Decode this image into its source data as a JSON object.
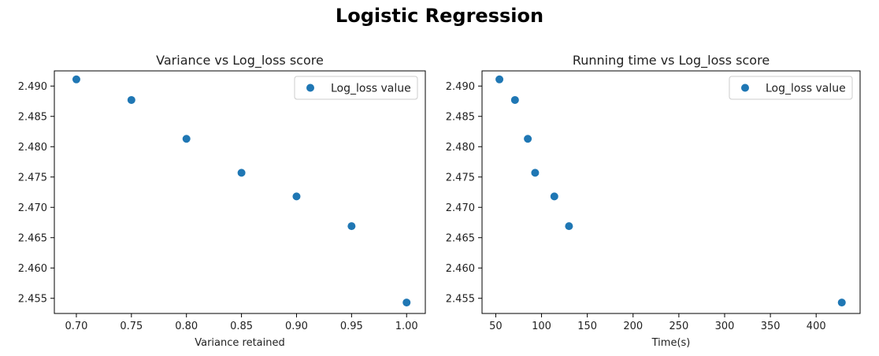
{
  "suptitle": "Logistic Regression",
  "chart_data": [
    {
      "type": "scatter",
      "title": "Variance vs Log_loss score",
      "xlabel": "Variance retained",
      "ylabel": "",
      "xlim": [
        0.68,
        1.017
      ],
      "ylim": [
        2.4525,
        2.4925
      ],
      "xticks": [
        0.7,
        0.75,
        0.8,
        0.85,
        0.9,
        0.95,
        1.0
      ],
      "xtick_labels": [
        "0.70",
        "0.75",
        "0.80",
        "0.85",
        "0.90",
        "0.95",
        "1.00"
      ],
      "yticks": [
        2.455,
        2.46,
        2.465,
        2.47,
        2.475,
        2.48,
        2.485,
        2.49
      ],
      "ytick_labels": [
        "2.455",
        "2.460",
        "2.465",
        "2.470",
        "2.475",
        "2.480",
        "2.485",
        "2.490"
      ],
      "grid": false,
      "legend": "top-right",
      "series": [
        {
          "name": "Log_loss value",
          "color": "#1f77b4",
          "x": [
            0.7,
            0.75,
            0.8,
            0.85,
            0.9,
            0.95,
            1.0
          ],
          "y": [
            2.4911,
            2.4877,
            2.4813,
            2.4757,
            2.4718,
            2.4669,
            2.4543
          ]
        }
      ]
    },
    {
      "type": "scatter",
      "title": "Running time vs Log_loss score",
      "xlabel": "Time(s)",
      "ylabel": "",
      "xlim": [
        35,
        448
      ],
      "ylim": [
        2.4525,
        2.4925
      ],
      "xticks": [
        50,
        100,
        150,
        200,
        250,
        300,
        350,
        400
      ],
      "xtick_labels": [
        "50",
        "100",
        "150",
        "200",
        "250",
        "300",
        "350",
        "400"
      ],
      "yticks": [
        2.455,
        2.46,
        2.465,
        2.47,
        2.475,
        2.48,
        2.485,
        2.49
      ],
      "ytick_labels": [
        "2.455",
        "2.460",
        "2.465",
        "2.470",
        "2.475",
        "2.480",
        "2.485",
        "2.490"
      ],
      "grid": false,
      "legend": "top-right",
      "series": [
        {
          "name": "Log_loss value",
          "color": "#1f77b4",
          "x": [
            54,
            71,
            85,
            93,
            114,
            130,
            428
          ],
          "y": [
            2.4911,
            2.4877,
            2.4813,
            2.4757,
            2.4718,
            2.4669,
            2.4543
          ]
        }
      ]
    }
  ]
}
